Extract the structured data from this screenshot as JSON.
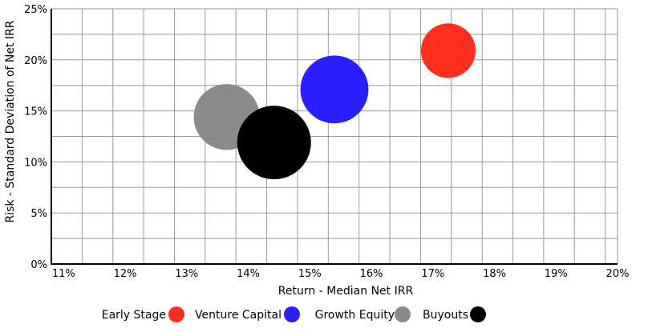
{
  "chart_data": {
    "type": "bubble",
    "xlabel": "Return - Median Net IRR",
    "ylabel": "Risk - Standard Deviation of Net IRR",
    "xlim": [
      10.8,
      20
    ],
    "ylim": [
      0,
      25
    ],
    "x_ticks": [
      11,
      12,
      13,
      14,
      15,
      16,
      17,
      18,
      19,
      20
    ],
    "x_tick_labels": [
      "11%",
      "12%",
      "13%",
      "14%",
      "15%",
      "16%",
      "17%",
      "18%",
      "19%",
      "20%"
    ],
    "y_ticks": [
      0,
      5,
      10,
      15,
      20,
      25
    ],
    "y_tick_labels": [
      "0%",
      "5%",
      "10%",
      "15%",
      "20%",
      "25%"
    ],
    "x_minor_gridlines": [
      11.3,
      11.8,
      12.3,
      12.8,
      13.3,
      13.8,
      14.3,
      14.8,
      15.3,
      15.8,
      16.3,
      16.8,
      17.3,
      17.8,
      18.3,
      18.8,
      19.3,
      19.8
    ],
    "y_gridlines": [
      2.5,
      5,
      7.5,
      10,
      12.5,
      15,
      17.5,
      20,
      22.5,
      25
    ],
    "grid": true,
    "legend_position": "bottom",
    "series": [
      {
        "name": "Early Stage",
        "x": 17.25,
        "y": 20.9,
        "size": 0.55,
        "color": "#ff2e1f"
      },
      {
        "name": "Venture Capital",
        "x": 15.4,
        "y": 17.1,
        "size": 0.85,
        "color": "#2a1fff"
      },
      {
        "name": "Growth Equity",
        "x": 13.65,
        "y": 14.4,
        "size": 0.8,
        "color": "#8a8a8a"
      },
      {
        "name": "Buyouts",
        "x": 14.42,
        "y": 11.9,
        "size": 1.0,
        "color": "#000000"
      }
    ]
  }
}
